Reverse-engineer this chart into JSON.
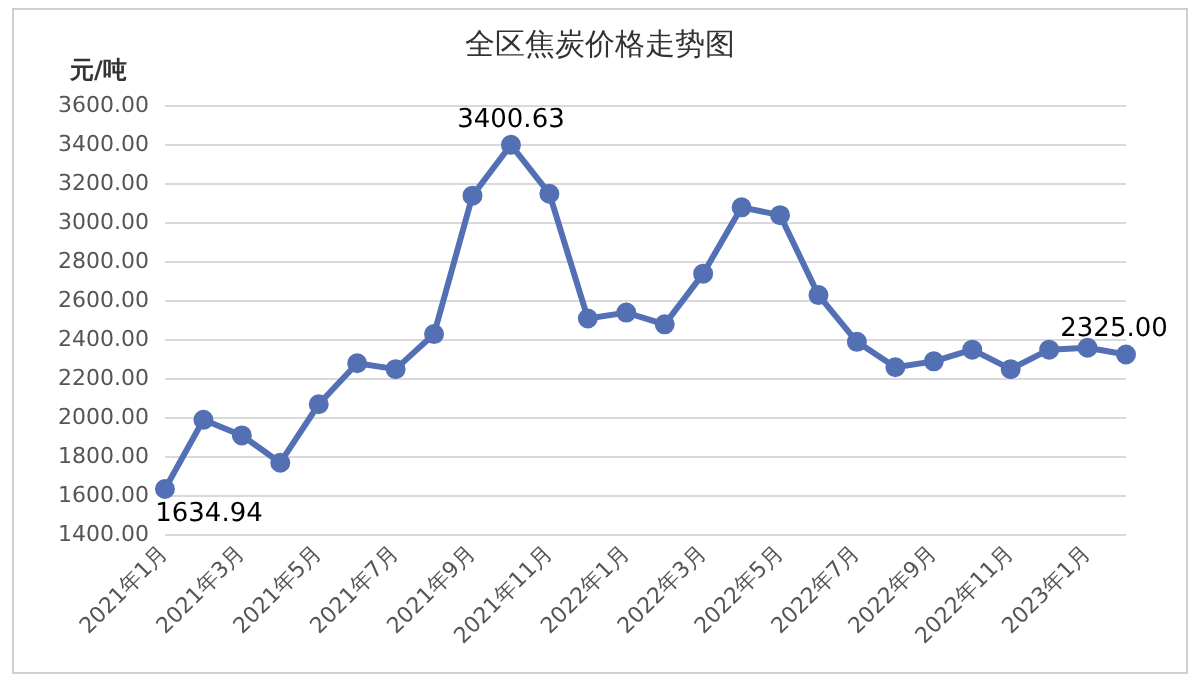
{
  "chart_data": {
    "type": "line",
    "title": "全区焦炭价格走势图",
    "ylabel": "元/吨",
    "categories": [
      "2021年1月",
      null,
      "2021年3月",
      null,
      "2021年5月",
      null,
      "2021年7月",
      null,
      "2021年9月",
      null,
      "2021年11月",
      null,
      "2022年1月",
      null,
      "2022年3月",
      null,
      "2022年5月",
      null,
      "2022年7月",
      null,
      "2022年9月",
      null,
      "2022年11月",
      null,
      "2023年1月",
      null
    ],
    "series": [
      {
        "color": "#5470b4",
        "values": [
          1634.94,
          1990,
          1910,
          1770,
          2070,
          2280,
          2250,
          2430,
          3140,
          3400.63,
          3150,
          2510,
          2540,
          2480,
          2740,
          3080,
          3040,
          2630,
          2390,
          2260,
          2290,
          2350,
          2250,
          2350,
          2360,
          2325.0
        ],
        "value_labels": [
          "1634.94",
          null,
          null,
          null,
          null,
          null,
          null,
          null,
          null,
          "3400.63",
          null,
          null,
          null,
          null,
          null,
          null,
          null,
          null,
          null,
          null,
          null,
          null,
          null,
          null,
          null,
          "2325.00"
        ]
      }
    ],
    "ylim": [
      1400,
      3600
    ],
    "yticks": [
      {
        "value": 1400,
        "label": "1400.00"
      },
      {
        "value": 1600,
        "label": "1600.00"
      },
      {
        "value": 1800,
        "label": "1800.00"
      },
      {
        "value": 2000,
        "label": "2000.00"
      },
      {
        "value": 2200,
        "label": "2200.00"
      },
      {
        "value": 2400,
        "label": "2400.00"
      },
      {
        "value": 2600,
        "label": "2600.00"
      },
      {
        "value": 2800,
        "label": "2800.00"
      },
      {
        "value": 3000,
        "label": "3000.00"
      },
      {
        "value": 3200,
        "label": "3200.00"
      },
      {
        "value": 3400,
        "label": "3400.00"
      },
      {
        "value": 3600,
        "label": "3600.00"
      }
    ],
    "grid": "y",
    "legend": false,
    "marker": "circle",
    "line_style": "solid"
  }
}
